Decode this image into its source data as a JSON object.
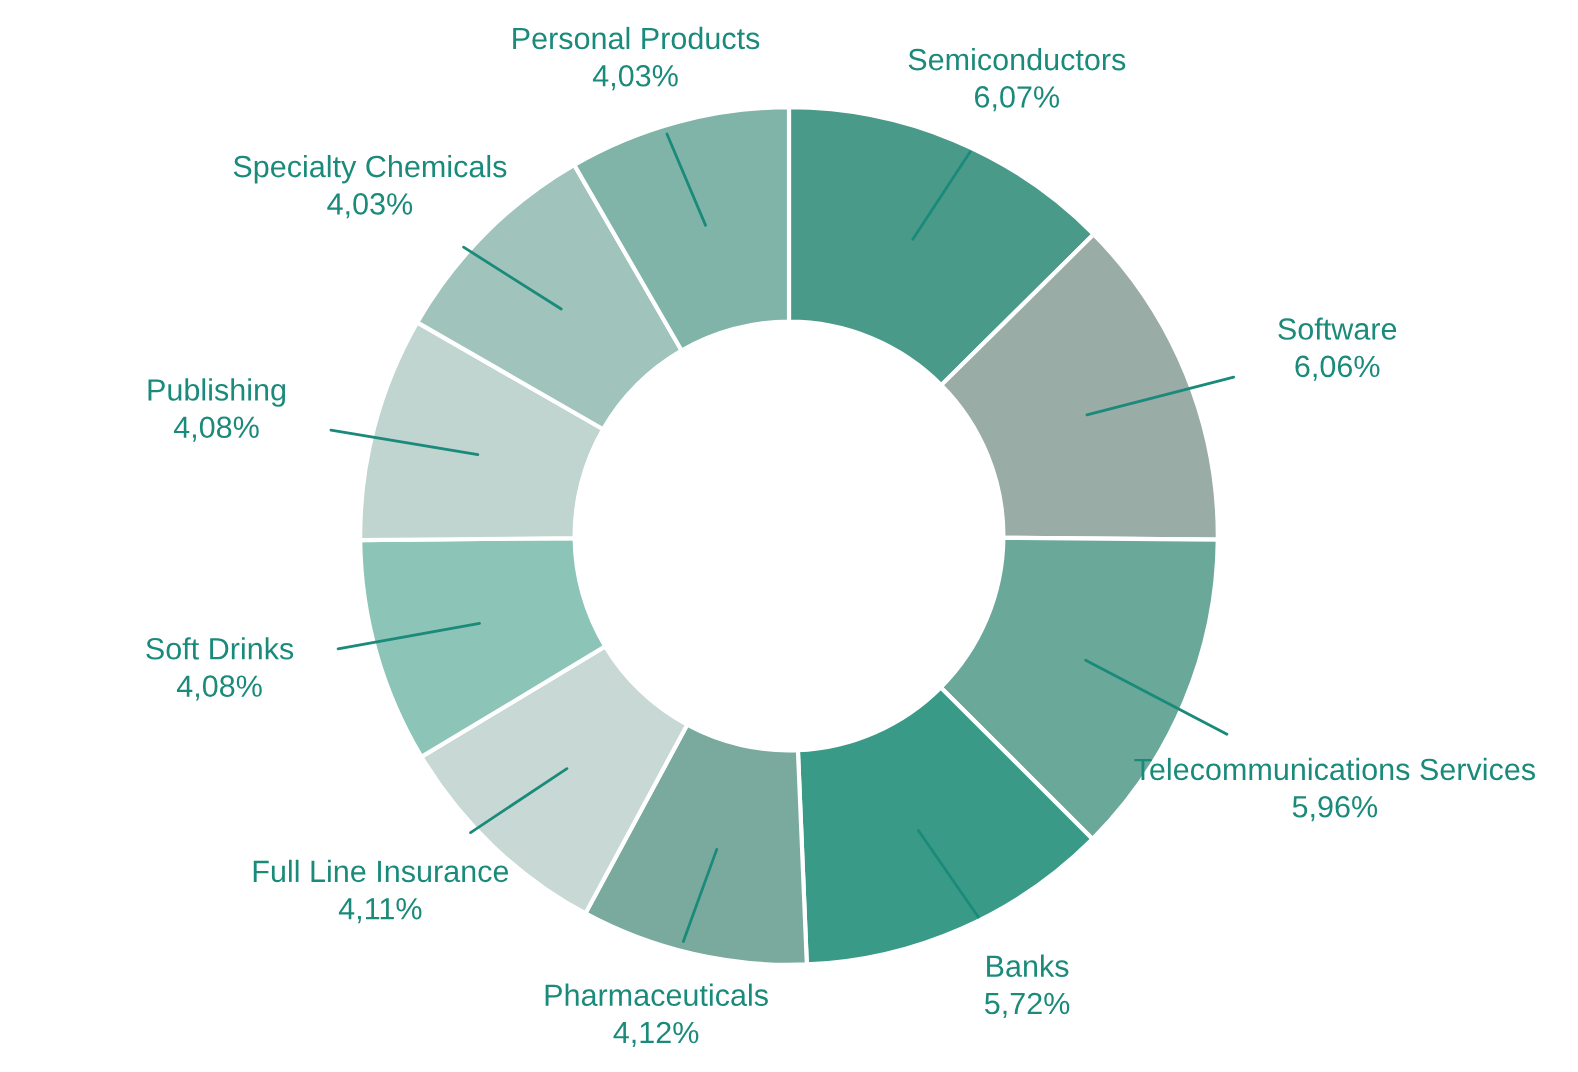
{
  "chart_data": {
    "type": "donut",
    "categories": [
      "Semiconductors",
      "Software",
      "Telecommunications Services",
      "Banks",
      "Pharmaceuticals",
      "Full Line Insurance",
      "Soft Drinks",
      "Publishing",
      "Specialty Chemicals",
      "Personal Products"
    ],
    "values": [
      6.07,
      6.06,
      5.96,
      5.72,
      4.12,
      4.11,
      4.08,
      4.08,
      4.03,
      4.03
    ],
    "value_labels": [
      "6,07%",
      "6,06%",
      "5,96%",
      "5,72%",
      "4,12%",
      "4,11%",
      "4,08%",
      "4,08%",
      "4,03%",
      "4,03%"
    ],
    "colors": [
      "#4a9a8a",
      "#9aaca6",
      "#6aa89a",
      "#3a9a88",
      "#7aaa9e",
      "#c8d8d4",
      "#8cc4b8",
      "#c0d4d0",
      "#a0c4bc",
      "#80b4a8"
    ],
    "legend": false
  }
}
